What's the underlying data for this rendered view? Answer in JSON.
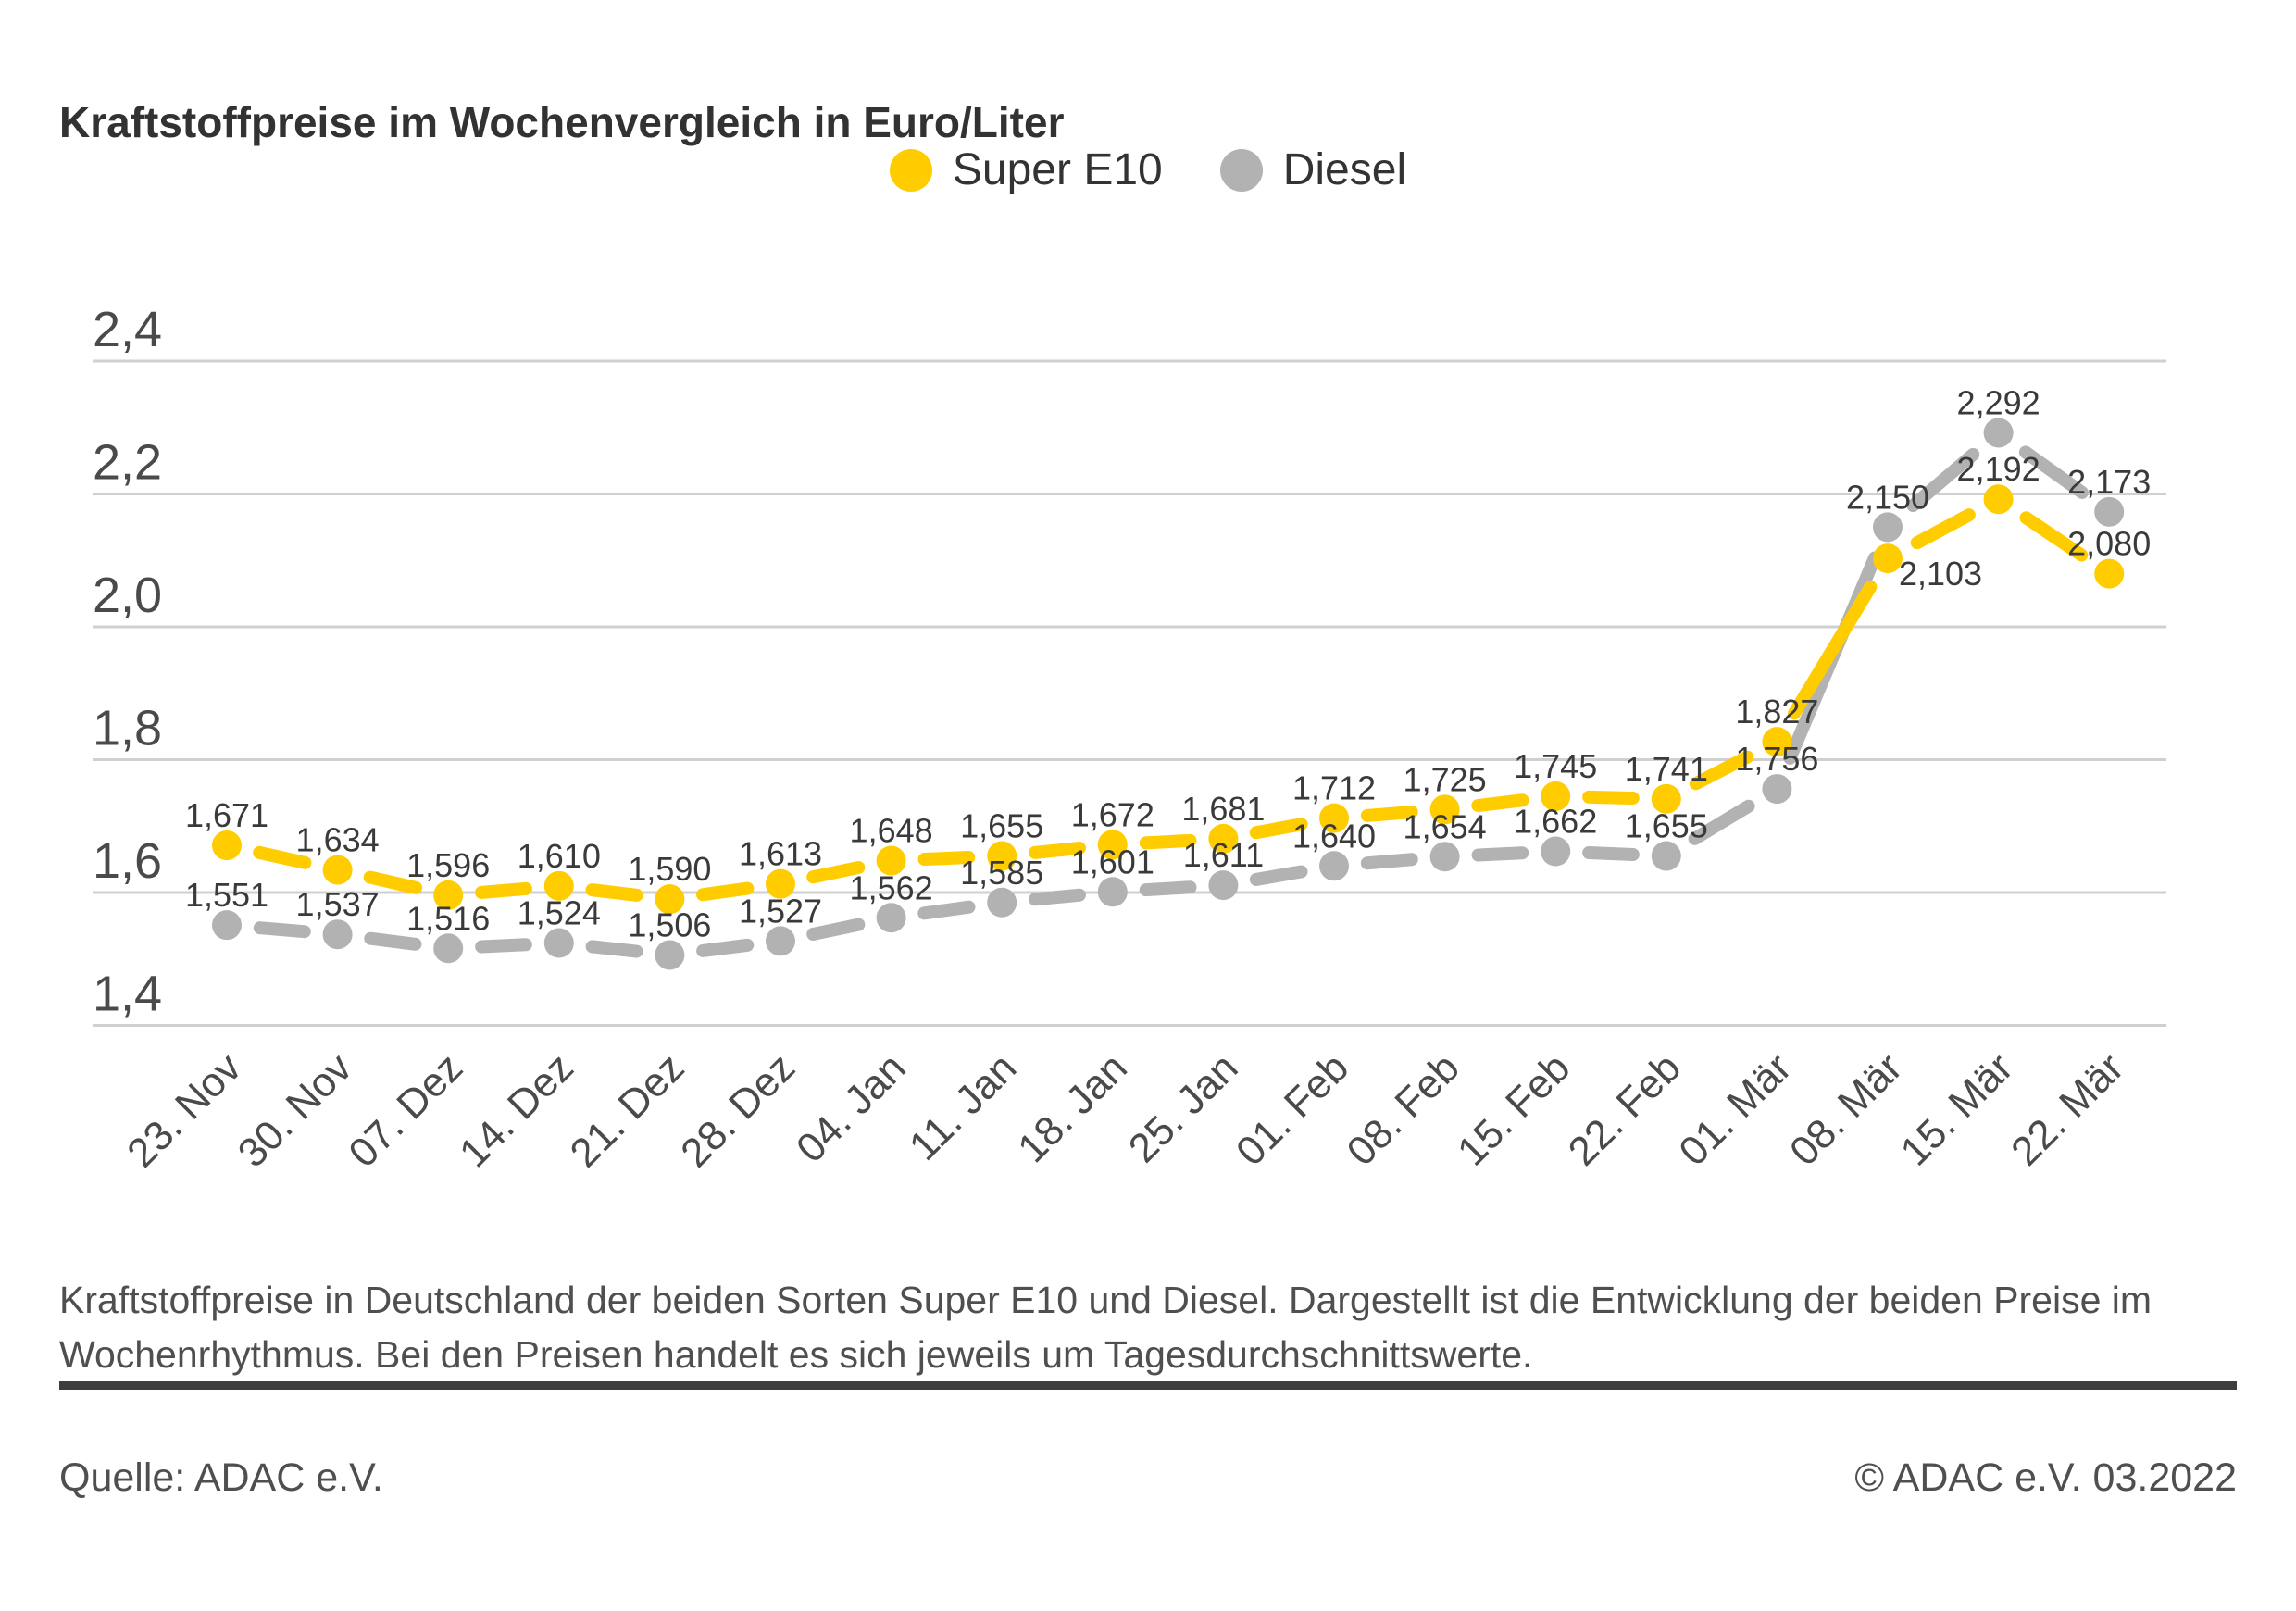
{
  "title": "Kraftstoffpreise im Wochenvergleich in Euro/Liter",
  "legend": [
    {
      "label": "Super E10",
      "color": "#FFCC00"
    },
    {
      "label": "Diesel",
      "color": "#B2B2B2"
    }
  ],
  "chart_data": {
    "type": "line",
    "categories": [
      "23. Nov",
      "30. Nov",
      "07. Dez",
      "14. Dez",
      "21. Dez",
      "28. Dez",
      "04. Jan",
      "11. Jan",
      "18. Jan",
      "25. Jan",
      "01. Feb",
      "08. Feb",
      "15. Feb",
      "22. Feb",
      "01. Mär",
      "08. Mär",
      "15. Mär",
      "22. Mär"
    ],
    "series": [
      {
        "name": "Super E10",
        "color": "#FFCC00",
        "values": [
          1.671,
          1.634,
          1.596,
          1.61,
          1.59,
          1.613,
          1.648,
          1.655,
          1.672,
          1.681,
          1.712,
          1.725,
          1.745,
          1.741,
          1.827,
          2.103,
          2.192,
          2.08
        ]
      },
      {
        "name": "Diesel",
        "color": "#B2B2B2",
        "values": [
          1.551,
          1.537,
          1.516,
          1.524,
          1.506,
          1.527,
          1.562,
          1.585,
          1.601,
          1.611,
          1.64,
          1.654,
          1.662,
          1.655,
          1.756,
          2.15,
          2.292,
          2.173
        ]
      }
    ],
    "title": "Kraftstoffpreise im Wochenvergleich in Euro/Liter",
    "xlabel": "",
    "ylabel": "Euro/Liter",
    "yticks": [
      1.4,
      1.6,
      1.8,
      2.0,
      2.2,
      2.4
    ],
    "ylim": [
      1.4,
      2.45
    ],
    "grid": true,
    "legend_position": "top-center",
    "decimal_separator": ",",
    "point_labels_visible": true
  },
  "description": "Kraftstoffpreise in Deutschland der beiden Sorten Super E10 und Diesel. Dargestellt ist die Entwicklung der beiden Preise im Wochenrhythmus. Bei den Preisen handelt es sich jeweils um Tagesdurchschnittswerte.",
  "footer": {
    "source": "Quelle: ADAC e.V.",
    "copyright": "© ADAC e.V. 03.2022"
  },
  "colors": {
    "super_e10": "#FFCC00",
    "diesel": "#B2B2B2",
    "grid": "#D0D0D0",
    "axis_text": "#4a4a4a",
    "data_label_text": "#3a3a3a",
    "title_text": "#323232",
    "divider": "#3E3E3E"
  }
}
